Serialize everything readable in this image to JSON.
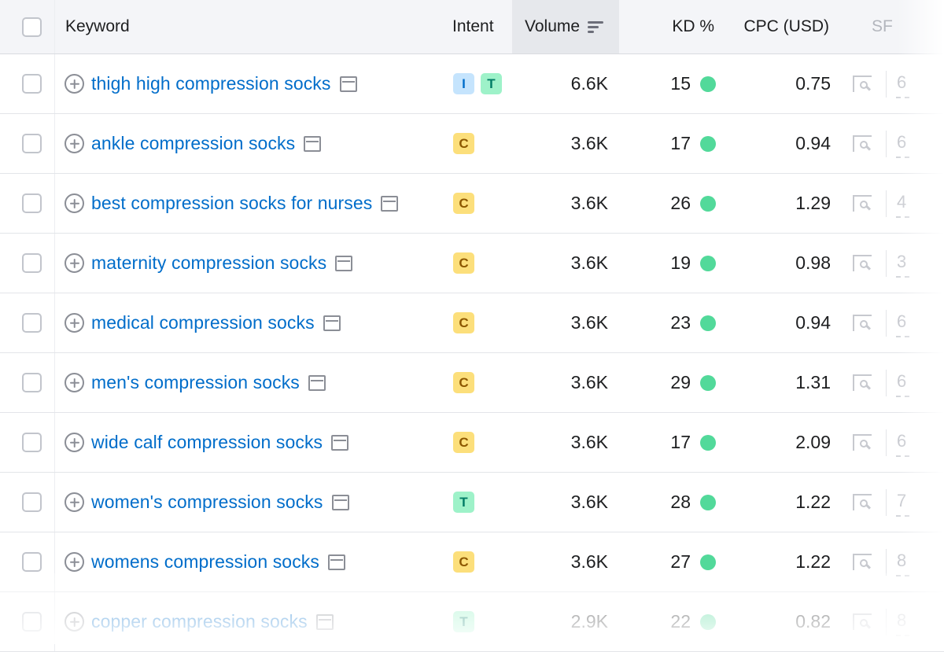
{
  "table": {
    "headers": {
      "keyword": "Keyword",
      "intent": "Intent",
      "volume": "Volume",
      "kd": "KD %",
      "cpc": "CPC (USD)",
      "sf": "SF"
    },
    "rows": [
      {
        "keyword": "thigh high compression socks",
        "intent": [
          "I",
          "T"
        ],
        "volume": "6.6K",
        "kd": "15",
        "cpc": "0.75",
        "sf": "6"
      },
      {
        "keyword": "ankle compression socks",
        "intent": [
          "C"
        ],
        "volume": "3.6K",
        "kd": "17",
        "cpc": "0.94",
        "sf": "6"
      },
      {
        "keyword": "best compression socks for nurses",
        "intent": [
          "C"
        ],
        "volume": "3.6K",
        "kd": "26",
        "cpc": "1.29",
        "sf": "4"
      },
      {
        "keyword": "maternity compression socks",
        "intent": [
          "C"
        ],
        "volume": "3.6K",
        "kd": "19",
        "cpc": "0.98",
        "sf": "3"
      },
      {
        "keyword": "medical compression socks",
        "intent": [
          "C"
        ],
        "volume": "3.6K",
        "kd": "23",
        "cpc": "0.94",
        "sf": "6"
      },
      {
        "keyword": "men's compression socks",
        "intent": [
          "C"
        ],
        "volume": "3.6K",
        "kd": "29",
        "cpc": "1.31",
        "sf": "6"
      },
      {
        "keyword": "wide calf compression socks",
        "intent": [
          "C"
        ],
        "volume": "3.6K",
        "kd": "17",
        "cpc": "2.09",
        "sf": "6"
      },
      {
        "keyword": "women's compression socks",
        "intent": [
          "T"
        ],
        "volume": "3.6K",
        "kd": "28",
        "cpc": "1.22",
        "sf": "7"
      },
      {
        "keyword": "womens compression socks",
        "intent": [
          "C"
        ],
        "volume": "3.6K",
        "kd": "27",
        "cpc": "1.22",
        "sf": "8"
      },
      {
        "keyword": "copper compression socks",
        "intent": [
          "T"
        ],
        "volume": "2.9K",
        "kd": "22",
        "cpc": "0.82",
        "sf": "8"
      }
    ]
  },
  "colors": {
    "kd_easy": "#52d99a",
    "link": "#006dca",
    "intent_informational_bg": "#c5e4fd",
    "intent_transactional_bg": "#9ef2c9",
    "intent_commercial_bg": "#fcdf7b"
  },
  "icons": {
    "add": "plus-circle-icon",
    "serp": "serp-snapshot-icon",
    "sort": "sort-descending-icon",
    "sf": "serp-features-icon"
  }
}
